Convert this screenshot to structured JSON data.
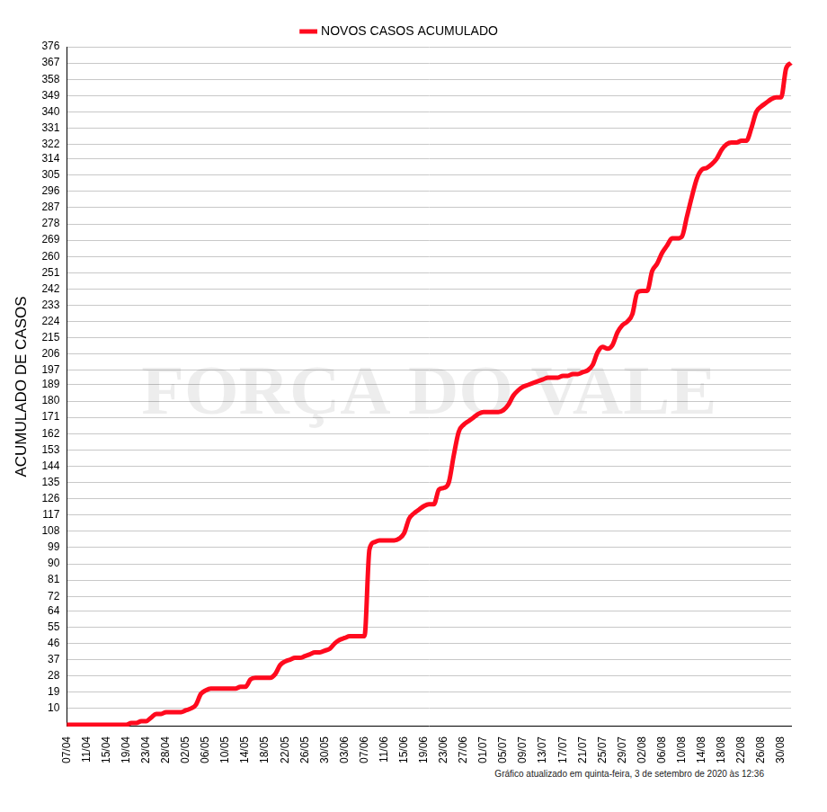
{
  "chart_data": {
    "type": "line",
    "y_label": "ACUMULADO DE CASOS",
    "caption": "Gráfico atualizado em quinta-feira, 3 de setembro de 2020 às 12:36",
    "watermark": "FORÇA DO VALE",
    "legend": "top",
    "grid": true,
    "categories": [
      "07/04",
      null,
      null,
      null,
      "11/04",
      null,
      null,
      null,
      "15/04",
      null,
      null,
      null,
      "19/04",
      null,
      null,
      null,
      "23/04",
      null,
      null,
      null,
      "28/04",
      null,
      null,
      null,
      "02/05",
      null,
      null,
      null,
      "06/05",
      null,
      null,
      null,
      "10/05",
      null,
      null,
      null,
      "14/05",
      null,
      null,
      null,
      "18/05",
      null,
      null,
      null,
      "22/05",
      null,
      null,
      null,
      "26/05",
      null,
      null,
      null,
      "30/05",
      null,
      null,
      null,
      "03/06",
      null,
      null,
      null,
      "07/06",
      null,
      null,
      null,
      "11/06",
      null,
      null,
      null,
      "15/06",
      null,
      null,
      null,
      "19/06",
      null,
      null,
      null,
      "23/06",
      null,
      null,
      null,
      "27/06",
      null,
      null,
      null,
      "01/07",
      null,
      null,
      null,
      "05/07",
      null,
      null,
      null,
      "09/07",
      null,
      null,
      null,
      "13/07",
      null,
      null,
      null,
      "17/07",
      null,
      null,
      null,
      "21/07",
      null,
      null,
      null,
      "25/07",
      null,
      null,
      null,
      "29/07",
      null,
      null,
      null,
      "02/08",
      null,
      null,
      null,
      "06/08",
      null,
      null,
      null,
      "10/08",
      null,
      null,
      null,
      "14/08",
      null,
      null,
      null,
      "18/08",
      null,
      null,
      null,
      "22/08",
      null,
      null,
      null,
      "26/08",
      null,
      null,
      null,
      "30/08",
      null,
      null
    ],
    "series": [
      {
        "name": "NOVOS CASOS ACUMULADO",
        "color": "#ff0a1e",
        "values": [
          1,
          1,
          1,
          1,
          1,
          1,
          1,
          1,
          1,
          1,
          1,
          1,
          1,
          2,
          2,
          3,
          3,
          5,
          7,
          7,
          8,
          8,
          8,
          8,
          9,
          10,
          12,
          18,
          20,
          21,
          21,
          21,
          21,
          21,
          21,
          22,
          22,
          26,
          27,
          27,
          27,
          27,
          29,
          34,
          36,
          37,
          38,
          38,
          39,
          40,
          41,
          41,
          42,
          43,
          46,
          48,
          49,
          50,
          50,
          50,
          50,
          98,
          102,
          103,
          103,
          103,
          103,
          104,
          107,
          115,
          118,
          120,
          122,
          123,
          123,
          131,
          132,
          135,
          150,
          163,
          167,
          169,
          171,
          173,
          174,
          174,
          174,
          174,
          175,
          178,
          183,
          186,
          188,
          189,
          190,
          191,
          192,
          193,
          193,
          193,
          194,
          194,
          195,
          195,
          196,
          197,
          200,
          207,
          210,
          209,
          211,
          218,
          222,
          224,
          228,
          240,
          241,
          241,
          252,
          256,
          262,
          266,
          270,
          270,
          271,
          282,
          293,
          303,
          308,
          309,
          311,
          314,
          319,
          322,
          323,
          323,
          324,
          324,
          331,
          340,
          343,
          345,
          347,
          348,
          348,
          364,
          367
        ]
      }
    ],
    "ylim": [
      0,
      376
    ],
    "yticks": [
      10,
      19,
      28,
      37,
      46,
      55,
      64,
      72,
      81,
      90,
      99,
      108,
      117,
      126,
      135,
      144,
      153,
      162,
      171,
      180,
      189,
      197,
      206,
      215,
      224,
      233,
      242,
      251,
      260,
      269,
      278,
      287,
      296,
      305,
      314,
      322,
      331,
      340,
      349,
      358,
      367,
      376
    ]
  }
}
